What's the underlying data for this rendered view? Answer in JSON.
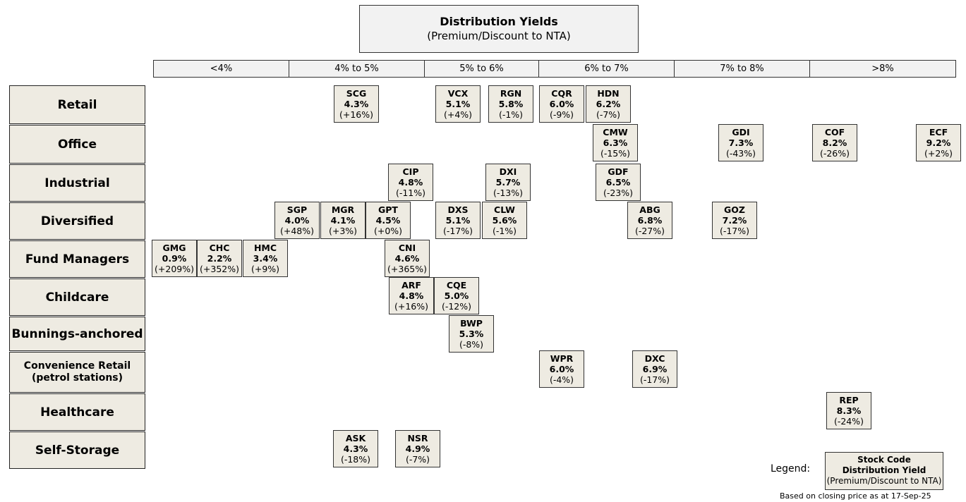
{
  "title": {
    "main": "Distribution Yields",
    "sub": "(Premium/Discount to NTA)"
  },
  "columns": [
    "<4%",
    "4% to 5%",
    "5% to 6%",
    "6% to 7%",
    "7% to 8%",
    ">8%"
  ],
  "sectors": [
    "Retail",
    "Office",
    "Industrial",
    "Diversified",
    "Fund Managers",
    "Childcare",
    "Bunnings-anchored",
    "Convenience Retail (petrol stations)",
    "Healthcare",
    "Self-Storage"
  ],
  "tiles": [
    {
      "code": "SCG",
      "yield": "4.3%",
      "prem": "(+16%)",
      "sector": "Retail"
    },
    {
      "code": "VCX",
      "yield": "5.1%",
      "prem": "(+4%)",
      "sector": "Retail"
    },
    {
      "code": "RGN",
      "yield": "5.8%",
      "prem": "(-1%)",
      "sector": "Retail"
    },
    {
      "code": "CQR",
      "yield": "6.0%",
      "prem": "(-9%)",
      "sector": "Retail"
    },
    {
      "code": "HDN",
      "yield": "6.2%",
      "prem": "(-7%)",
      "sector": "Retail"
    },
    {
      "code": "CMW",
      "yield": "6.3%",
      "prem": "(-15%)",
      "sector": "Office"
    },
    {
      "code": "GDI",
      "yield": "7.3%",
      "prem": "(-43%)",
      "sector": "Office"
    },
    {
      "code": "COF",
      "yield": "8.2%",
      "prem": "(-26%)",
      "sector": "Office"
    },
    {
      "code": "ECF",
      "yield": "9.2%",
      "prem": "(+2%)",
      "sector": "Office"
    },
    {
      "code": "CIP",
      "yield": "4.8%",
      "prem": "(-11%)",
      "sector": "Industrial"
    },
    {
      "code": "DXI",
      "yield": "5.7%",
      "prem": "(-13%)",
      "sector": "Industrial"
    },
    {
      "code": "GDF",
      "yield": "6.5%",
      "prem": "(-23%)",
      "sector": "Industrial"
    },
    {
      "code": "SGP",
      "yield": "4.0%",
      "prem": "(+48%)",
      "sector": "Diversified"
    },
    {
      "code": "MGR",
      "yield": "4.1%",
      "prem": "(+3%)",
      "sector": "Diversified"
    },
    {
      "code": "GPT",
      "yield": "4.5%",
      "prem": "(+0%)",
      "sector": "Diversified"
    },
    {
      "code": "DXS",
      "yield": "5.1%",
      "prem": "(-17%)",
      "sector": "Diversified"
    },
    {
      "code": "CLW",
      "yield": "5.6%",
      "prem": "(-1%)",
      "sector": "Diversified"
    },
    {
      "code": "ABG",
      "yield": "6.8%",
      "prem": "(-27%)",
      "sector": "Diversified"
    },
    {
      "code": "GOZ",
      "yield": "7.2%",
      "prem": "(-17%)",
      "sector": "Diversified"
    },
    {
      "code": "GMG",
      "yield": "0.9%",
      "prem": "(+209%)",
      "sector": "Fund Managers"
    },
    {
      "code": "CHC",
      "yield": "2.2%",
      "prem": "(+352%)",
      "sector": "Fund Managers"
    },
    {
      "code": "HMC",
      "yield": "3.4%",
      "prem": "(+9%)",
      "sector": "Fund Managers"
    },
    {
      "code": "CNI",
      "yield": "4.6%",
      "prem": "(+365%)",
      "sector": "Fund Managers"
    },
    {
      "code": "ARF",
      "yield": "4.8%",
      "prem": "(+16%)",
      "sector": "Childcare"
    },
    {
      "code": "CQE",
      "yield": "5.0%",
      "prem": "(-12%)",
      "sector": "Childcare"
    },
    {
      "code": "BWP",
      "yield": "5.3%",
      "prem": "(-8%)",
      "sector": "Bunnings-anchored"
    },
    {
      "code": "WPR",
      "yield": "6.0%",
      "prem": "(-4%)",
      "sector": "Convenience Retail"
    },
    {
      "code": "DXC",
      "yield": "6.9%",
      "prem": "(-17%)",
      "sector": "Convenience Retail"
    },
    {
      "code": "REP",
      "yield": "8.3%",
      "prem": "(-24%)",
      "sector": "Healthcare"
    },
    {
      "code": "ASK",
      "yield": "4.3%",
      "prem": "(-18%)",
      "sector": "Self-Storage"
    },
    {
      "code": "NSR",
      "yield": "4.9%",
      "prem": "(-7%)",
      "sector": "Self-Storage"
    }
  ],
  "legend": {
    "label": "Legend:",
    "line1": "Stock Code",
    "line2": "Distribution Yield",
    "line3": "(Premium/Discount to NTA)"
  },
  "note": "Based on closing price as at 17-Sep-25"
}
